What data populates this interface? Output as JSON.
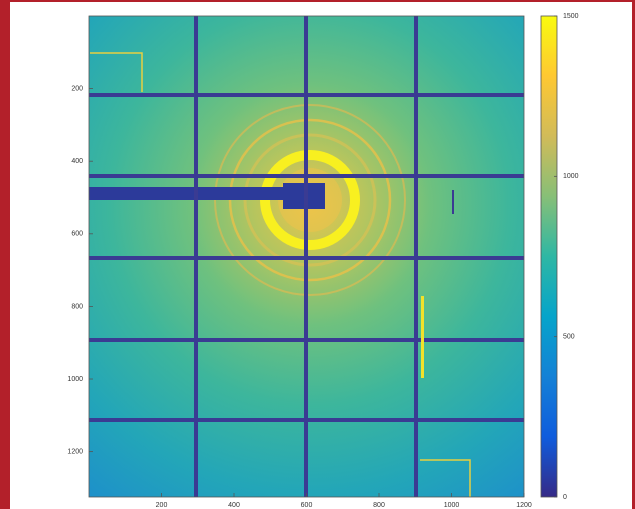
{
  "chart_data": {
    "type": "image",
    "xlim": [
      0,
      1200
    ],
    "xticks": [
      200,
      400,
      600,
      800,
      1000,
      1200
    ],
    "ylim": [
      1325,
      0
    ],
    "yticks": [
      200,
      400,
      600,
      800,
      1000,
      1200
    ],
    "colormap": "parula",
    "clim": [
      0,
      1500
    ],
    "cticks": [
      0,
      500,
      1000,
      1500
    ]
  }
}
